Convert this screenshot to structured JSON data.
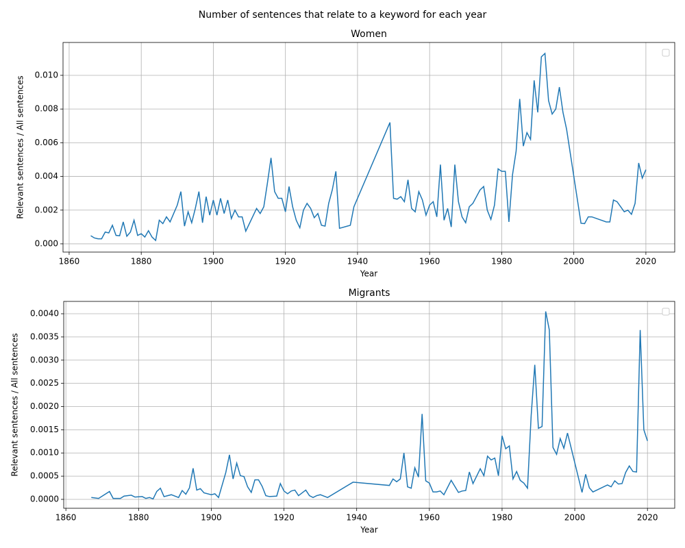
{
  "title": "Number of sentences that relate to a keyword for each year",
  "chart_data": [
    {
      "type": "line",
      "title": "Women",
      "x_label": "Year",
      "y_label": "Relevant sentences / All sentences",
      "xlim": [
        1858.3,
        2028
      ],
      "ylim": [
        -0.00049,
        0.01195
      ],
      "xticks": [
        1860,
        1880,
        1900,
        1920,
        1940,
        1960,
        1980,
        2000,
        2020
      ],
      "yticks": [
        {
          "value": 0,
          "label": "0.000"
        },
        {
          "value": 0.002,
          "label": "0.002"
        },
        {
          "value": 0.004,
          "label": "0.004"
        },
        {
          "value": 0.006,
          "label": "0.006"
        },
        {
          "value": 0.008,
          "label": "0.008"
        },
        {
          "value": 0.01,
          "label": "0.010"
        }
      ],
      "grid": true,
      "legend": "upper right",
      "x": [
        1866,
        1867,
        1868,
        1869,
        1870,
        1871,
        1872,
        1873,
        1874,
        1875,
        1876,
        1877,
        1878,
        1879,
        1880,
        1881,
        1882,
        1883,
        1884,
        1885,
        1886,
        1887,
        1888,
        1889,
        1890,
        1891,
        1892,
        1893,
        1894,
        1895,
        1896,
        1897,
        1898,
        1899,
        1900,
        1901,
        1902,
        1903,
        1904,
        1905,
        1906,
        1907,
        1908,
        1909,
        1912,
        1913,
        1914,
        1915,
        1916,
        1917,
        1918,
        1919,
        1920,
        1921,
        1922,
        1923,
        1924,
        1925,
        1926,
        1927,
        1928,
        1929,
        1930,
        1931,
        1932,
        1933,
        1934,
        1935,
        1938,
        1939,
        1949,
        1950,
        1951,
        1952,
        1953,
        1954,
        1955,
        1956,
        1957,
        1958,
        1959,
        1960,
        1961,
        1962,
        1963,
        1964,
        1965,
        1966,
        1967,
        1968,
        1969,
        1970,
        1971,
        1972,
        1973,
        1974,
        1975,
        1976,
        1977,
        1978,
        1979,
        1980,
        1981,
        1982,
        1983,
        1984,
        1985,
        1986,
        1987,
        1988,
        1989,
        1990,
        1991,
        1992,
        1993,
        1994,
        1995,
        1996,
        1997,
        1998,
        2002,
        2003,
        2004,
        2005,
        2009,
        2010,
        2011,
        2012,
        2013,
        2014,
        2015,
        2016,
        2017,
        2018,
        2019,
        2020
      ],
      "series": [
        {
          "color": "#1f77b4",
          "values": [
            0.00048,
            0.00035,
            0.0003,
            0.0003,
            0.0007,
            0.00065,
            0.0011,
            0.0005,
            0.00048,
            0.0013,
            0.00045,
            0.0007,
            0.0014,
            0.0005,
            0.0006,
            0.0004,
            0.00078,
            0.0004,
            0.0002,
            0.0014,
            0.0012,
            0.0016,
            0.0013,
            0.0018,
            0.0023,
            0.0031,
            0.00105,
            0.0019,
            0.00125,
            0.0021,
            0.0031,
            0.00125,
            0.0028,
            0.0017,
            0.0026,
            0.0017,
            0.0027,
            0.0018,
            0.0026,
            0.0015,
            0.002,
            0.0016,
            0.0016,
            0.00075,
            0.0021,
            0.0018,
            0.0022,
            0.0036,
            0.0051,
            0.0031,
            0.0027,
            0.0027,
            0.0019,
            0.0034,
            0.0022,
            0.0014,
            0.00095,
            0.002,
            0.0024,
            0.0021,
            0.00155,
            0.0018,
            0.0011,
            0.00105,
            0.0024,
            0.0032,
            0.0043,
            0.00092,
            0.0011,
            0.0022,
            0.0072,
            0.0027,
            0.00265,
            0.0028,
            0.0025,
            0.0038,
            0.0021,
            0.0019,
            0.0031,
            0.0026,
            0.0017,
            0.0023,
            0.0025,
            0.0016,
            0.0047,
            0.0014,
            0.0021,
            0.001,
            0.0047,
            0.0025,
            0.0016,
            0.00125,
            0.0022,
            0.0024,
            0.0028,
            0.0032,
            0.0034,
            0.002,
            0.00145,
            0.0023,
            0.00445,
            0.0043,
            0.0043,
            0.0013,
            0.0041,
            0.0055,
            0.0086,
            0.0058,
            0.0066,
            0.0062,
            0.0097,
            0.0078,
            0.0111,
            0.0113,
            0.0085,
            0.0077,
            0.008,
            0.0093,
            0.0078,
            0.0068,
            0.00122,
            0.0012,
            0.0016,
            0.0016,
            0.0013,
            0.0013,
            0.0026,
            0.0025,
            0.0022,
            0.0019,
            0.002,
            0.00175,
            0.0024,
            0.0048,
            0.0039,
            0.0044
          ]
        }
      ]
    },
    {
      "type": "line",
      "title": "Migrants",
      "x_label": "Year",
      "y_label": "Relevant sentences / All sentences",
      "xlim": [
        1859.4,
        2027.5
      ],
      "ylim": [
        -0.000192,
        0.004266
      ],
      "xticks": [
        1860,
        1880,
        1900,
        1920,
        1940,
        1960,
        1980,
        2000,
        2020
      ],
      "yticks": [
        {
          "value": 0,
          "label": "0.0000"
        },
        {
          "value": 0.0005,
          "label": "0.0005"
        },
        {
          "value": 0.001,
          "label": "0.0010"
        },
        {
          "value": 0.0015,
          "label": "0.0015"
        },
        {
          "value": 0.002,
          "label": "0.0020"
        },
        {
          "value": 0.0025,
          "label": "0.0025"
        },
        {
          "value": 0.003,
          "label": "0.0030"
        },
        {
          "value": 0.0035,
          "label": "0.0035"
        },
        {
          "value": 0.004,
          "label": "0.0040"
        }
      ],
      "grid": true,
      "legend": "upper right",
      "x": [
        1867,
        1869,
        1872,
        1873,
        1875,
        1876,
        1878,
        1879,
        1881,
        1882,
        1883,
        1884,
        1885,
        1886,
        1887,
        1889,
        1891,
        1892,
        1893,
        1894,
        1895,
        1896,
        1897,
        1898,
        1900,
        1901,
        1902,
        1904,
        1905,
        1906,
        1907,
        1908,
        1909,
        1910,
        1911,
        1912,
        1913,
        1914,
        1915,
        1916,
        1918,
        1919,
        1920,
        1921,
        1922,
        1923,
        1924,
        1926,
        1927,
        1928,
        1929,
        1930,
        1932,
        1939,
        1949,
        1950,
        1951,
        1952,
        1953,
        1954,
        1955,
        1956,
        1957,
        1958,
        1959,
        1960,
        1961,
        1962,
        1963,
        1964,
        1966,
        1968,
        1969,
        1970,
        1971,
        1972,
        1974,
        1975,
        1976,
        1977,
        1978,
        1979,
        1980,
        1981,
        1982,
        1983,
        1984,
        1985,
        1986,
        1987,
        1988,
        1989,
        1990,
        1991,
        1992,
        1993,
        1994,
        1995,
        1996,
        1997,
        1998,
        2002,
        2003,
        2004,
        2005,
        2009,
        2010,
        2011,
        2012,
        2013,
        2014,
        2015,
        2016,
        2017,
        2018,
        2019,
        2020
      ],
      "series": [
        {
          "color": "#1f77b4",
          "values": [
            4e-05,
            2e-05,
            0.00017,
            2e-05,
            2e-05,
            7e-05,
            9e-05,
            5e-05,
            6e-05,
            2e-05,
            4e-05,
            1e-05,
            0.00017,
            0.00024,
            6e-05,
            0.0001,
            4e-05,
            0.00019,
            0.00011,
            0.00025,
            0.00067,
            0.0002,
            0.00023,
            0.00014,
            0.0001,
            0.00012,
            4e-05,
            0.00058,
            0.00096,
            0.00044,
            0.00078,
            0.00051,
            0.00049,
            0.00027,
            0.00015,
            0.00042,
            0.00042,
            0.00028,
            8e-05,
            6e-05,
            7e-05,
            0.00034,
            0.00018,
            0.00012,
            0.00018,
            0.0002,
            8e-05,
            0.0002,
            8e-05,
            4e-05,
            8e-05,
            0.0001,
            4e-05,
            0.00037,
            0.0003,
            0.00044,
            0.00038,
            0.00044,
            0.001,
            0.00027,
            0.00024,
            0.00068,
            0.00048,
            0.00184,
            0.0004,
            0.00035,
            0.00016,
            0.00016,
            0.00018,
            0.0001,
            0.00041,
            0.00015,
            0.00018,
            0.00019,
            0.00059,
            0.00034,
            0.00066,
            0.00051,
            0.00093,
            0.00085,
            0.00089,
            0.00051,
            0.00137,
            0.00109,
            0.00115,
            0.00044,
            0.0006,
            0.00041,
            0.00035,
            0.00024,
            0.0018,
            0.0029,
            0.00153,
            0.00157,
            0.00405,
            0.00365,
            0.00112,
            0.00097,
            0.00131,
            0.0011,
            0.00143,
            0.00015,
            0.00054,
            0.00025,
            0.00016,
            0.00031,
            0.00027,
            0.0004,
            0.00033,
            0.00034,
            0.00058,
            0.00072,
            0.0006,
            0.00059,
            0.00365,
            0.0015,
            0.00126
          ]
        }
      ]
    }
  ]
}
